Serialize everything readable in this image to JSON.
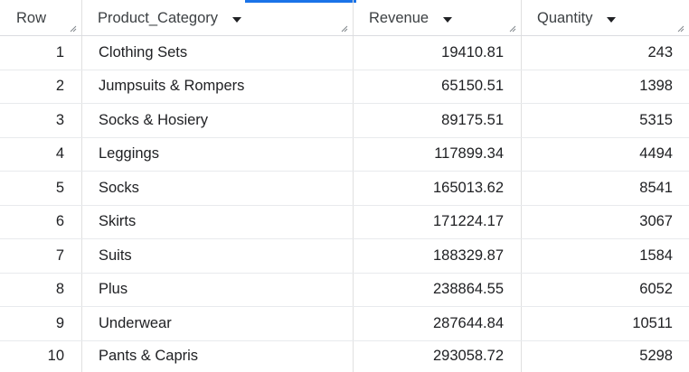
{
  "table": {
    "columns": {
      "row": "Row",
      "category": "Product_Category",
      "revenue": "Revenue",
      "quantity": "Quantity"
    },
    "rows": [
      {
        "row": "1",
        "category": "Clothing Sets",
        "revenue": "19410.81",
        "quantity": "243"
      },
      {
        "row": "2",
        "category": "Jumpsuits & Rompers",
        "revenue": "65150.51",
        "quantity": "1398"
      },
      {
        "row": "3",
        "category": "Socks & Hosiery",
        "revenue": "89175.51",
        "quantity": "5315"
      },
      {
        "row": "4",
        "category": "Leggings",
        "revenue": "117899.34",
        "quantity": "4494"
      },
      {
        "row": "5",
        "category": "Socks",
        "revenue": "165013.62",
        "quantity": "8541"
      },
      {
        "row": "6",
        "category": "Skirts",
        "revenue": "171224.17",
        "quantity": "3067"
      },
      {
        "row": "7",
        "category": "Suits",
        "revenue": "188329.87",
        "quantity": "1584"
      },
      {
        "row": "8",
        "category": "Plus",
        "revenue": "238864.55",
        "quantity": "6052"
      },
      {
        "row": "9",
        "category": "Underwear",
        "revenue": "287644.84",
        "quantity": "10511"
      },
      {
        "row": "10",
        "category": "Pants & Capris",
        "revenue": "293058.72",
        "quantity": "5298"
      }
    ]
  },
  "colors": {
    "accent": "#1a73e8",
    "text": "#202124",
    "border": "#e0e0e0"
  }
}
